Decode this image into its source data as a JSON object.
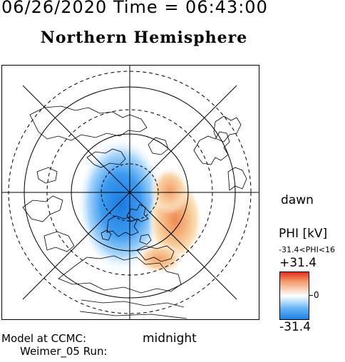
{
  "header": {
    "date_time": "06/26/2020 Time = 06:43:00",
    "hemisphere": "Northern Hemisphere"
  },
  "map": {
    "orientation_right": "dawn",
    "orientation_bottom": "midnight",
    "potential_pattern": "two-cell",
    "negative_cell_side": "dusk/pre-midnight (blue)",
    "positive_cell_side": "dawn/post-midnight (red)"
  },
  "colorbar": {
    "quantity": "PHI [kV]",
    "range_text": "-31.4<PHI<16",
    "max_label": "+31.4",
    "zero_label": "0",
    "min_label": "-31.4",
    "color_high": "#e32a1a",
    "color_zero": "#ffffff",
    "color_low": "#1f7fe0"
  },
  "footer": {
    "model_line": "Model at CCMC:",
    "run_line": "Weimer_05 Run:"
  }
}
